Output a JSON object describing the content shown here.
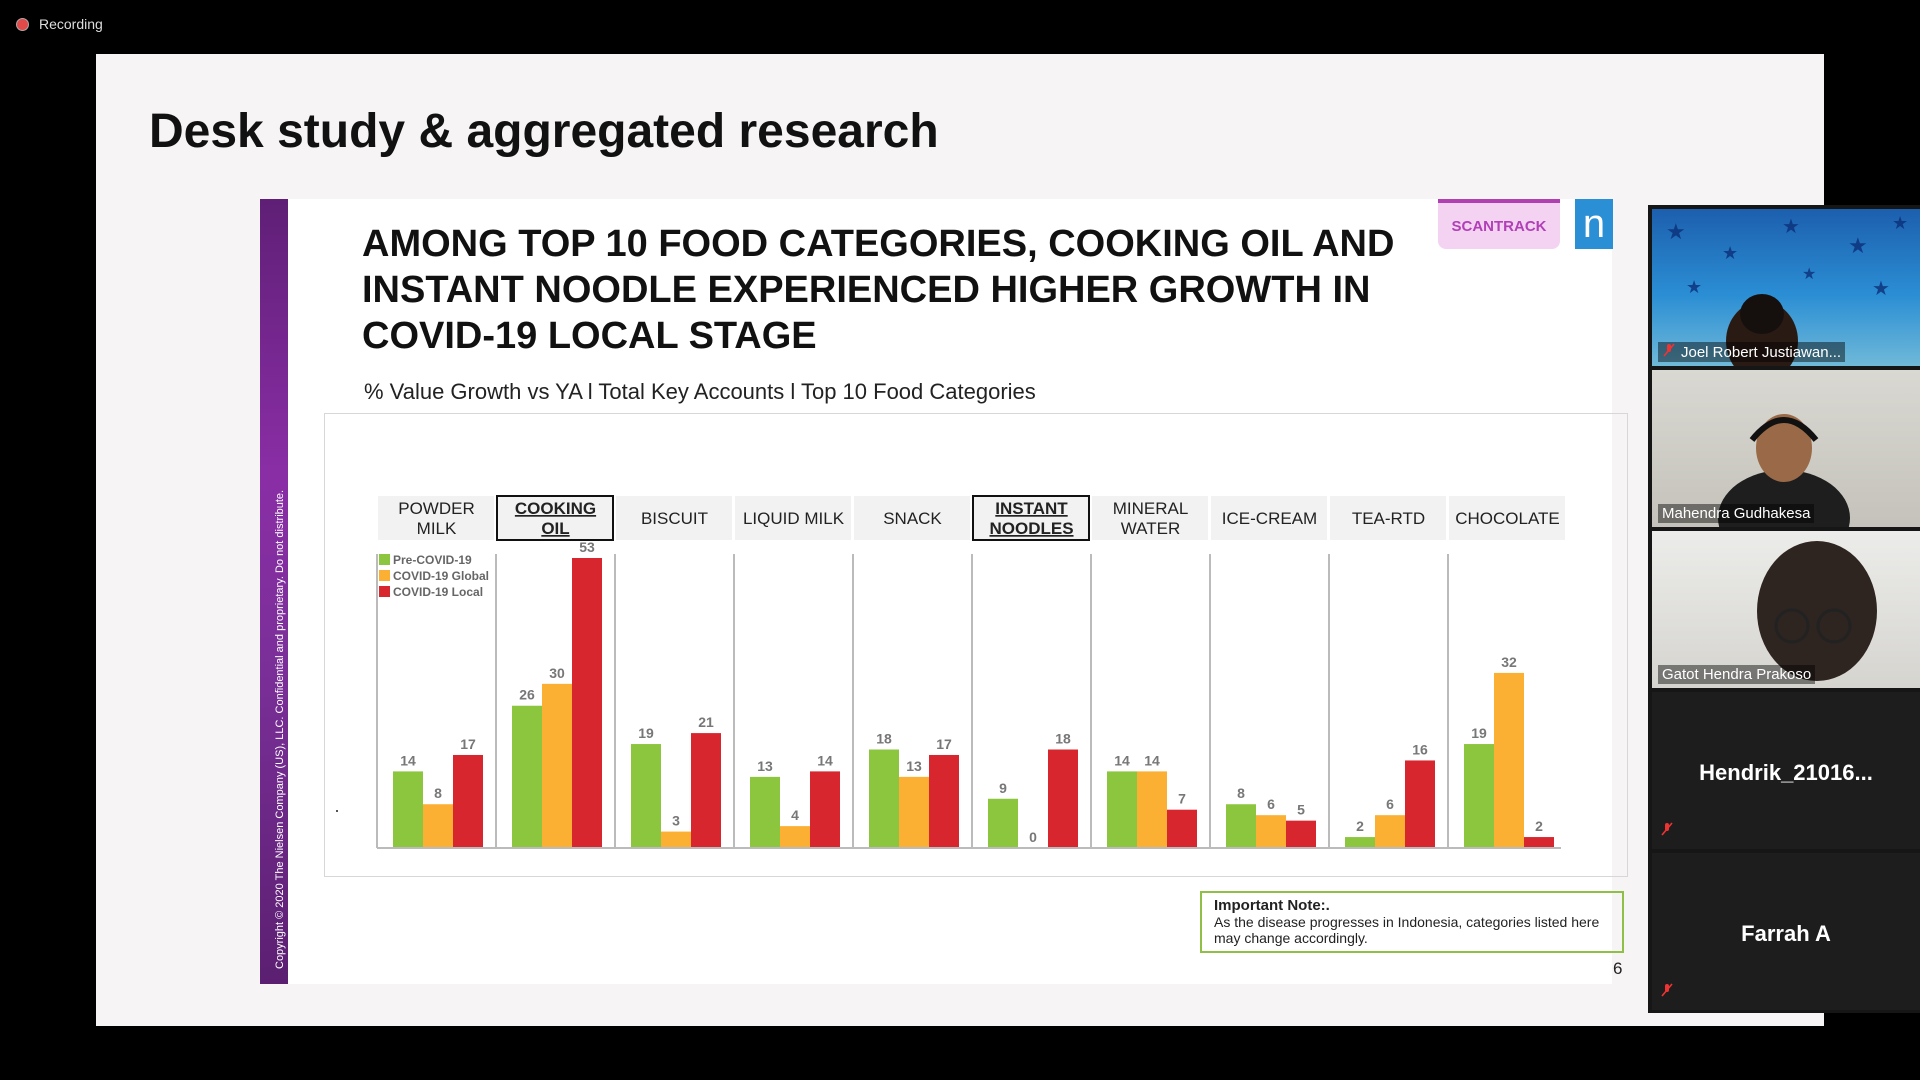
{
  "app": {
    "recording_label": "Recording"
  },
  "slide": {
    "title": "Desk study & aggregated research",
    "headline": "AMONG TOP 10 FOOD CATEGORIES, COOKING OIL AND INSTANT NOODLE EXPERIENCED HIGHER GROWTH IN COVID-19 LOCAL STAGE",
    "subtitle": "% Value Growth vs YA l Total Key Accounts l Top 10 Food Categories",
    "badge": "SCANTRACK",
    "logo_letter": "n",
    "copyright": "Copyright © 2020 The Nielsen Company (US), LLC. Confidential and proprietary. Do not distribute.",
    "note_title": "Important Note:.",
    "note_text": "As the disease progresses in Indonesia, categories listed here may change accordingly.",
    "page_number": "6"
  },
  "chart_data": {
    "type": "bar",
    "categories": [
      "POWDER MILK",
      "COOKING OIL",
      "BISCUIT",
      "LIQUID MILK",
      "SNACK",
      "INSTANT NOODLES",
      "MINERAL WATER",
      "ICE-CREAM",
      "TEA-RTD",
      "CHOCOLATE"
    ],
    "highlighted": [
      "COOKING OIL",
      "INSTANT NOODLES"
    ],
    "series": [
      {
        "name": "Pre-COVID-19",
        "color": "#8cc63f",
        "values": [
          14,
          26,
          19,
          13,
          18,
          9,
          14,
          8,
          2,
          19
        ]
      },
      {
        "name": "COVID-19 Global",
        "color": "#fbb034",
        "values": [
          8,
          30,
          3,
          4,
          13,
          0,
          14,
          6,
          6,
          32
        ]
      },
      {
        "name": "COVID-19 Local",
        "color": "#d7262e",
        "values": [
          17,
          53,
          21,
          14,
          17,
          18,
          7,
          5,
          16,
          2
        ]
      }
    ],
    "legend_position": "top-left",
    "grid": false
  },
  "participants": [
    {
      "name": "Joel Robert Justiawan...",
      "muted": true,
      "video": true
    },
    {
      "name": "Mahendra Gudhakesa",
      "muted": false,
      "video": true
    },
    {
      "name": "Gatot Hendra Prakoso",
      "muted": false,
      "video": true
    },
    {
      "name": "Hendrik_21016...",
      "muted": true,
      "video": false
    },
    {
      "name": "Farrah A",
      "muted": true,
      "video": false
    }
  ]
}
